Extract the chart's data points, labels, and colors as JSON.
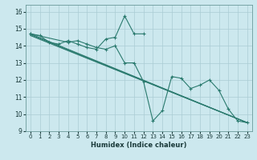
{
  "xlabel": "Humidex (Indice chaleur)",
  "bg_color": "#cce8ee",
  "line_color": "#2a7a6e",
  "grid_color": "#aaccd4",
  "xlim": [
    -0.5,
    23.5
  ],
  "ylim": [
    9,
    16.4
  ],
  "xticks": [
    0,
    1,
    2,
    3,
    4,
    5,
    6,
    7,
    8,
    9,
    10,
    11,
    12,
    13,
    14,
    15,
    16,
    17,
    18,
    19,
    20,
    21,
    22,
    23
  ],
  "yticks": [
    9,
    10,
    11,
    12,
    13,
    14,
    15,
    16
  ],
  "series": [
    {
      "x": [
        0,
        1,
        2,
        3,
        4,
        5,
        6,
        7,
        8,
        9,
        10,
        11,
        12
      ],
      "y": [
        14.7,
        14.6,
        14.2,
        14.1,
        14.3,
        14.1,
        13.9,
        13.8,
        14.4,
        14.5,
        15.75,
        14.7,
        14.7
      ],
      "marker": true
    },
    {
      "x": [
        0,
        4,
        5,
        6,
        7,
        8,
        9,
        10,
        11,
        12,
        13,
        14,
        15,
        16,
        17,
        18,
        19,
        20,
        21,
        22,
        23
      ],
      "y": [
        14.7,
        14.2,
        14.3,
        14.1,
        13.9,
        13.8,
        14.0,
        13.0,
        13.0,
        11.9,
        9.6,
        10.2,
        12.2,
        12.1,
        11.5,
        11.7,
        12.0,
        11.4,
        10.3,
        9.6,
        9.5
      ],
      "marker": true
    },
    {
      "x": [
        0,
        23
      ],
      "y": [
        14.7,
        9.5
      ],
      "marker": false
    },
    {
      "x": [
        0,
        23
      ],
      "y": [
        14.65,
        9.5
      ],
      "marker": false
    },
    {
      "x": [
        0,
        23
      ],
      "y": [
        14.6,
        9.5
      ],
      "marker": false
    }
  ]
}
